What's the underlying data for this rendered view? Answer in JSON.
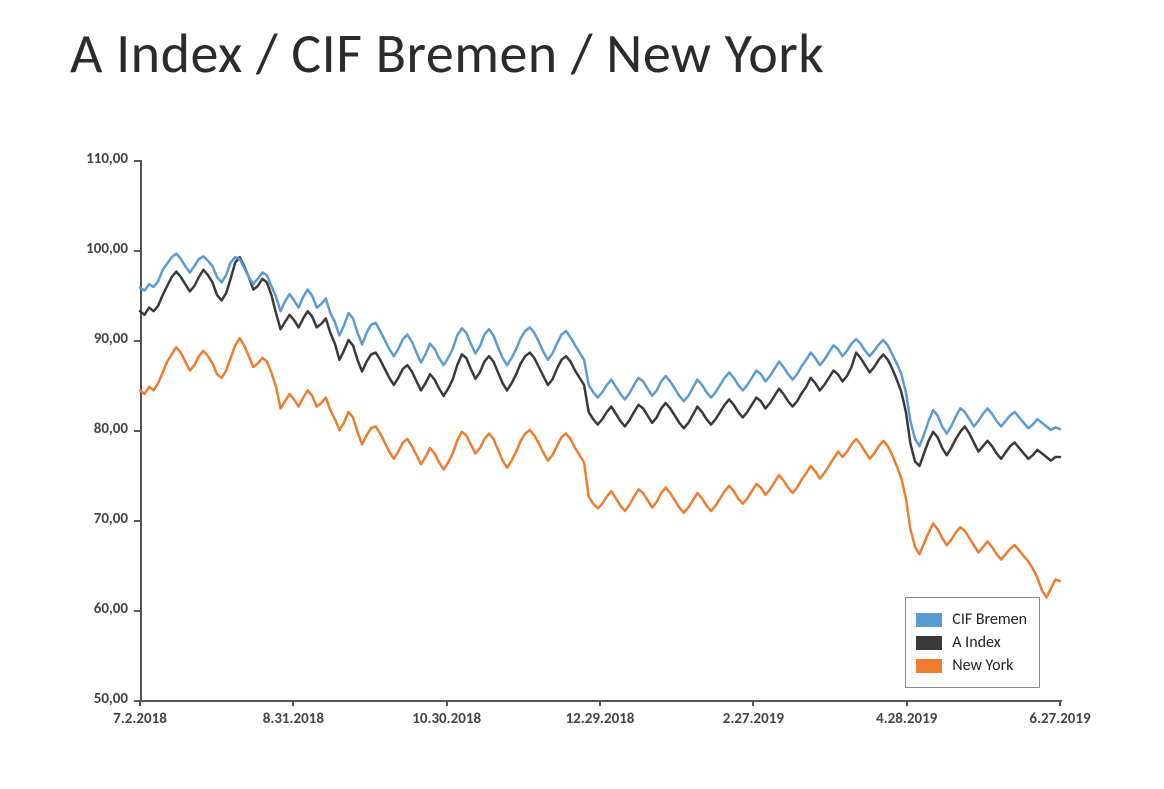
{
  "title": "A Index / CIF Bremen / New York",
  "chart": {
    "type": "line",
    "background_color": "#ffffff",
    "axis_color": "#555555",
    "label_color": "#444444",
    "title_fontsize": 56,
    "label_fontsize": 15,
    "ylim": [
      50,
      110
    ],
    "ytick_step": 10,
    "yticks": [
      "50,00",
      "60,00",
      "70,00",
      "80,00",
      "90,00",
      "100,00",
      "110,00"
    ],
    "xlim": [
      0,
      360
    ],
    "xticks": [
      {
        "pos": 0,
        "label": "7.2.2018"
      },
      {
        "pos": 60,
        "label": "8.31.2018"
      },
      {
        "pos": 120,
        "label": "10.30.2018"
      },
      {
        "pos": 180,
        "label": "12.29.2018"
      },
      {
        "pos": 240,
        "label": "2.27.2019"
      },
      {
        "pos": 300,
        "label": "4.28.2019"
      },
      {
        "pos": 360,
        "label": "6.27.2019"
      }
    ],
    "line_width": 2.5,
    "series": [
      {
        "name": "CIF Bremen",
        "color": "#5b9bd5",
        "data": [
          95.8,
          95.5,
          96.2,
          95.9,
          96.5,
          97.8,
          98.5,
          99.2,
          99.6,
          99.0,
          98.2,
          97.5,
          98.2,
          99.0,
          99.3,
          98.8,
          98.2,
          97.0,
          96.4,
          97.2,
          98.6,
          99.2,
          99.0,
          98.0,
          97.0,
          96.2,
          96.8,
          97.5,
          97.2,
          96.0,
          94.8,
          93.2,
          94.3,
          95.1,
          94.4,
          93.6,
          94.8,
          95.6,
          94.9,
          93.6,
          94.0,
          94.6,
          93.0,
          92.0,
          90.5,
          91.6,
          93.0,
          92.4,
          90.8,
          89.5,
          90.8,
          91.7,
          91.9,
          91.0,
          90.0,
          89.0,
          88.2,
          89.0,
          90.1,
          90.6,
          89.8,
          88.6,
          87.5,
          88.4,
          89.6,
          89.0,
          88.0,
          87.2,
          88.0,
          89.0,
          90.5,
          91.3,
          90.8,
          89.6,
          88.5,
          89.3,
          90.6,
          91.2,
          90.5,
          89.2,
          88.0,
          87.2,
          88.0,
          89.0,
          90.2,
          91.0,
          91.4,
          90.8,
          89.8,
          88.7,
          87.8,
          88.5,
          89.6,
          90.6,
          91.0,
          90.3,
          89.4,
          88.6,
          87.8,
          85.0,
          84.2,
          83.6,
          84.2,
          85.0,
          85.6,
          84.8,
          84.0,
          83.4,
          84.1,
          85.0,
          85.8,
          85.4,
          84.6,
          83.8,
          84.4,
          85.4,
          86.0,
          85.4,
          84.6,
          83.8,
          83.2,
          83.8,
          84.7,
          85.6,
          85.0,
          84.2,
          83.6,
          84.2,
          85.0,
          85.8,
          86.4,
          85.8,
          85.0,
          84.4,
          85.0,
          85.8,
          86.6,
          86.2,
          85.4,
          86.0,
          86.8,
          87.6,
          87.0,
          86.2,
          85.6,
          86.2,
          87.1,
          87.8,
          88.6,
          88.0,
          87.2,
          87.8,
          88.6,
          89.4,
          89.0,
          88.2,
          88.8,
          89.6,
          90.1,
          89.6,
          88.8,
          88.2,
          88.8,
          89.5,
          90.0,
          89.4,
          88.4,
          87.4,
          86.2,
          84.2,
          81.0,
          79.0,
          78.2,
          79.5,
          81.0,
          82.2,
          81.6,
          80.4,
          79.6,
          80.4,
          81.5,
          82.4,
          82.0,
          81.2,
          80.4,
          81.0,
          81.8,
          82.4,
          81.8,
          81.0,
          80.4,
          81.0,
          81.6,
          82.0,
          81.4,
          80.8,
          80.2,
          80.6,
          81.2,
          80.8,
          80.4,
          80.0,
          80.3,
          80.1
        ]
      },
      {
        "name": "A Index",
        "color": "#3a3a3a",
        "data": [
          93.2,
          92.8,
          93.6,
          93.2,
          93.8,
          95.0,
          96.0,
          97.0,
          97.6,
          97.0,
          96.2,
          95.4,
          96.0,
          97.0,
          97.8,
          97.2,
          96.4,
          95.0,
          94.4,
          95.2,
          96.8,
          98.6,
          99.2,
          98.2,
          97.0,
          95.6,
          96.0,
          96.8,
          96.4,
          95.0,
          93.0,
          91.2,
          92.0,
          92.8,
          92.2,
          91.4,
          92.4,
          93.2,
          92.6,
          91.4,
          91.8,
          92.4,
          90.8,
          89.6,
          87.8,
          88.8,
          90.0,
          89.4,
          87.8,
          86.5,
          87.6,
          88.4,
          88.6,
          87.8,
          86.8,
          85.8,
          85.0,
          85.8,
          86.8,
          87.2,
          86.5,
          85.4,
          84.4,
          85.2,
          86.2,
          85.6,
          84.6,
          83.8,
          84.6,
          85.6,
          87.2,
          88.4,
          88.0,
          86.8,
          85.7,
          86.4,
          87.6,
          88.2,
          87.6,
          86.4,
          85.2,
          84.4,
          85.2,
          86.2,
          87.4,
          88.2,
          88.6,
          88.0,
          87.0,
          86.0,
          85.0,
          85.6,
          86.8,
          87.8,
          88.2,
          87.6,
          86.6,
          85.8,
          85.0,
          82.0,
          81.2,
          80.6,
          81.2,
          82.0,
          82.6,
          81.8,
          81.0,
          80.4,
          81.1,
          82.0,
          82.8,
          82.4,
          81.6,
          80.8,
          81.4,
          82.4,
          83.0,
          82.4,
          81.6,
          80.8,
          80.2,
          80.8,
          81.7,
          82.6,
          82.0,
          81.2,
          80.6,
          81.2,
          82.0,
          82.8,
          83.4,
          82.8,
          82.0,
          81.4,
          82.0,
          82.8,
          83.6,
          83.2,
          82.4,
          83.0,
          83.8,
          84.6,
          84.0,
          83.2,
          82.6,
          83.2,
          84.1,
          84.8,
          85.8,
          85.2,
          84.4,
          85.0,
          85.8,
          86.6,
          86.2,
          85.4,
          86.0,
          87.0,
          88.6,
          88.0,
          87.2,
          86.4,
          87.0,
          87.8,
          88.4,
          87.8,
          86.8,
          85.6,
          84.2,
          82.0,
          78.5,
          76.5,
          76.0,
          77.4,
          78.8,
          79.8,
          79.2,
          78.0,
          77.2,
          78.0,
          79.0,
          79.8,
          80.4,
          79.6,
          78.6,
          77.6,
          78.2,
          78.8,
          78.2,
          77.4,
          76.8,
          77.5,
          78.2,
          78.6,
          78.0,
          77.4,
          76.8,
          77.2,
          77.8,
          77.4,
          77.0,
          76.6,
          77.0,
          77.0
        ]
      },
      {
        "name": "New York",
        "color": "#ed7d31",
        "data": [
          84.4,
          84.0,
          84.8,
          84.4,
          85.2,
          86.4,
          87.6,
          88.4,
          89.2,
          88.6,
          87.6,
          86.6,
          87.2,
          88.2,
          88.8,
          88.2,
          87.4,
          86.2,
          85.8,
          86.6,
          88.0,
          89.4,
          90.2,
          89.4,
          88.2,
          87.0,
          87.4,
          88.0,
          87.6,
          86.4,
          84.8,
          82.4,
          83.2,
          84.0,
          83.4,
          82.6,
          83.6,
          84.4,
          83.8,
          82.6,
          83.0,
          83.6,
          82.2,
          81.2,
          80.0,
          80.8,
          82.0,
          81.4,
          79.8,
          78.4,
          79.4,
          80.2,
          80.4,
          79.6,
          78.6,
          77.6,
          76.8,
          77.6,
          78.6,
          79.0,
          78.2,
          77.2,
          76.2,
          77.0,
          78.0,
          77.4,
          76.4,
          75.6,
          76.4,
          77.4,
          78.8,
          79.8,
          79.4,
          78.4,
          77.4,
          78.0,
          79.0,
          79.6,
          79.0,
          77.8,
          76.6,
          75.8,
          76.6,
          77.6,
          78.8,
          79.6,
          80.0,
          79.4,
          78.5,
          77.5,
          76.6,
          77.2,
          78.2,
          79.2,
          79.6,
          79.0,
          78.0,
          77.2,
          76.4,
          72.6,
          71.8,
          71.3,
          71.8,
          72.6,
          73.2,
          72.4,
          71.6,
          71.0,
          71.7,
          72.6,
          73.4,
          73.0,
          72.2,
          71.4,
          72.0,
          73.0,
          73.6,
          73.0,
          72.2,
          71.4,
          70.8,
          71.4,
          72.2,
          73.0,
          72.4,
          71.6,
          71.0,
          71.6,
          72.4,
          73.2,
          73.8,
          73.2,
          72.4,
          71.8,
          72.4,
          73.2,
          74.0,
          73.6,
          72.8,
          73.4,
          74.2,
          75.0,
          74.4,
          73.6,
          73.0,
          73.6,
          74.5,
          75.2,
          76.0,
          75.4,
          74.6,
          75.2,
          76.0,
          76.8,
          77.6,
          77.0,
          77.6,
          78.4,
          79.0,
          78.4,
          77.6,
          76.8,
          77.4,
          78.2,
          78.8,
          78.2,
          77.2,
          76.0,
          74.6,
          72.4,
          69.0,
          67.0,
          66.2,
          67.4,
          68.6,
          69.6,
          69.0,
          68.0,
          67.2,
          67.8,
          68.6,
          69.2,
          68.8,
          68.0,
          67.2,
          66.4,
          67.0,
          67.6,
          67.0,
          66.2,
          65.6,
          66.2,
          66.8,
          67.2,
          66.6,
          66.0,
          65.4,
          64.6,
          63.6,
          62.2,
          61.4,
          62.4,
          63.4,
          63.2
        ]
      }
    ],
    "legend": {
      "position": "bottom-right",
      "border_color": "#888888",
      "items": [
        "CIF Bremen",
        "A Index",
        "New York"
      ]
    }
  }
}
